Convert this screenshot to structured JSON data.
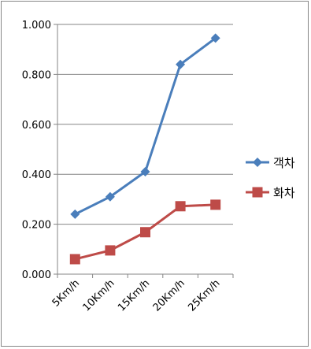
{
  "chart_data": {
    "type": "line",
    "title": "",
    "xlabel": "",
    "ylabel": "",
    "categories": [
      "5Km/h",
      "10Km/h",
      "15Km/h",
      "20Km/h",
      "25Km/h"
    ],
    "ylim": [
      0,
      1.0
    ],
    "yticks": [
      "0.000",
      "0.200",
      "0.400",
      "0.600",
      "0.800",
      "1.000"
    ],
    "grid": true,
    "legend_position": "right",
    "series": [
      {
        "name": "객차",
        "values": [
          0.24,
          0.31,
          0.41,
          0.84,
          0.945
        ],
        "color": "#4a7ebb",
        "marker": "diamond"
      },
      {
        "name": "화차",
        "values": [
          0.06,
          0.095,
          0.168,
          0.272,
          0.278
        ],
        "color": "#be4b48",
        "marker": "square"
      }
    ]
  }
}
